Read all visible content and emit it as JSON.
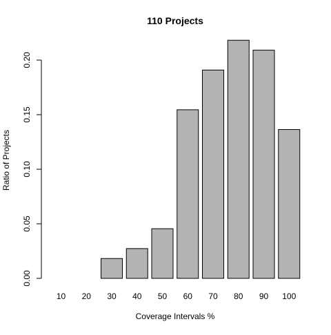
{
  "chart_data": {
    "type": "bar",
    "title": "110 Projects",
    "xlabel": "Coverage Intervals %",
    "ylabel": "Ratio of Projects",
    "categories": [
      "10",
      "20",
      "30",
      "40",
      "50",
      "60",
      "70",
      "80",
      "90",
      "100"
    ],
    "values": [
      0.0,
      0.0,
      0.0182,
      0.0273,
      0.0455,
      0.1545,
      0.1909,
      0.2182,
      0.2091,
      0.1364
    ],
    "ylim": [
      0,
      0.22
    ],
    "yticks": [
      "0.00",
      "0.05",
      "0.10",
      "0.15",
      "0.20"
    ],
    "grid": false,
    "legend": "none",
    "bar_fill": "#b3b3b3",
    "bar_stroke": "#000000"
  }
}
